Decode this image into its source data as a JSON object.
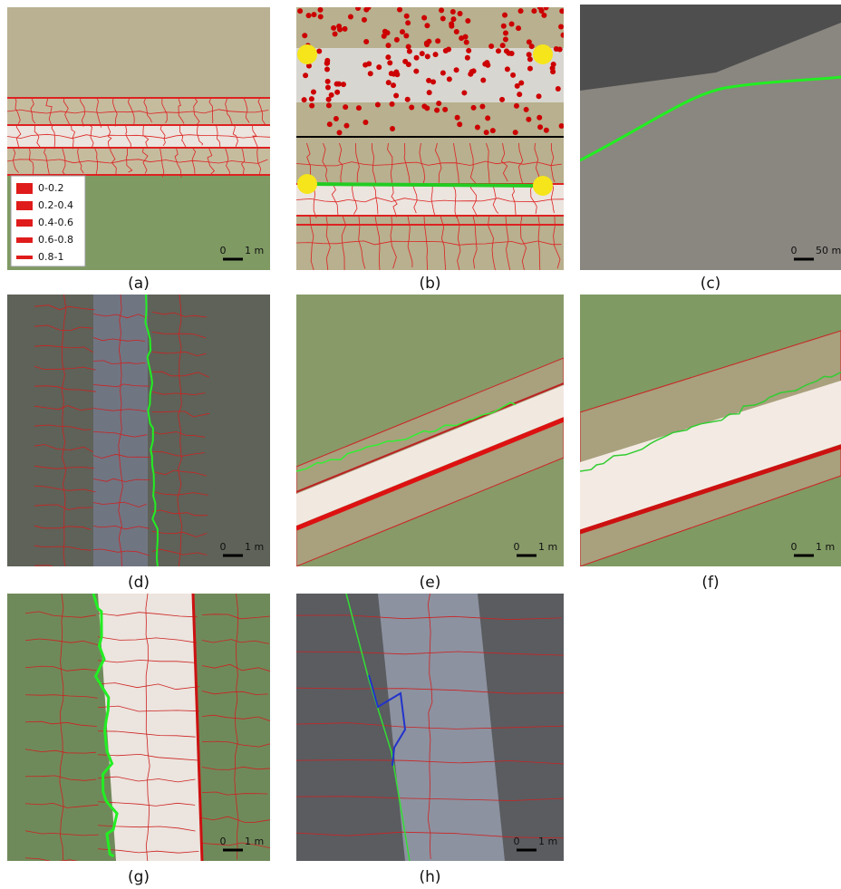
{
  "panels": [
    {
      "caption": "(a)",
      "legend": [
        "0-0.2",
        "0.2-0.4",
        "0.4-0.6",
        "0.6-0.8",
        "0.8-1"
      ],
      "scale": {
        "start": "0",
        "end": "1 m"
      }
    },
    {
      "caption": "(b)"
    },
    {
      "caption": "(c)",
      "scale": {
        "start": "0",
        "end": "50 m"
      }
    },
    {
      "caption": "(d)",
      "scale": {
        "start": "0",
        "end": "1 m"
      }
    },
    {
      "caption": "(e)",
      "scale": {
        "start": "0",
        "end": "1 m"
      }
    },
    {
      "caption": "(f)",
      "scale": {
        "start": "0",
        "end": "1 m"
      }
    },
    {
      "caption": "(g)",
      "scale": {
        "start": "0",
        "end": "1 m"
      }
    },
    {
      "caption": "(h)",
      "scale": {
        "start": "0",
        "end": "1 m"
      }
    }
  ]
}
